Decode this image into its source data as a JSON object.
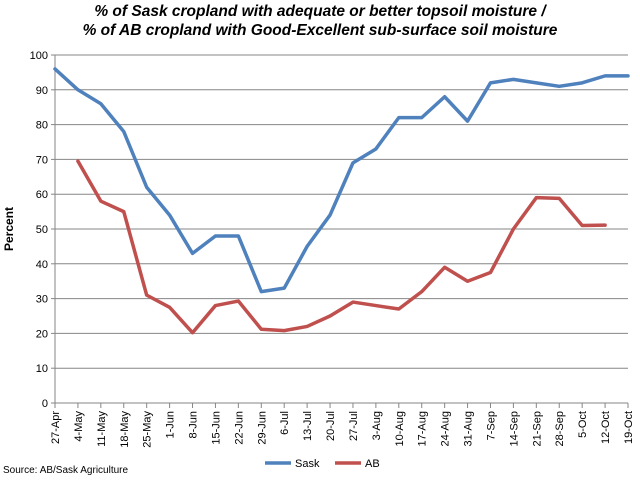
{
  "title": {
    "line1": "% of Sask cropland with adequate or better topsoil moisture /",
    "line2": "% of AB cropland with Good-Excellent sub-surface soil moisture"
  },
  "source": "Source: AB/Sask Agriculture",
  "chart_data": {
    "type": "line",
    "title": "% of Sask cropland with adequate or better topsoil moisture / % of AB cropland with Good-Excellent sub-surface soil moisture",
    "xlabel": "",
    "ylabel": "Percent",
    "ylim": [
      0,
      100
    ],
    "yticks": [
      0,
      10,
      20,
      30,
      40,
      50,
      60,
      70,
      80,
      90,
      100
    ],
    "grid": true,
    "legend": "bottom",
    "categories": [
      "27-Apr",
      "4-May",
      "11-May",
      "18-May",
      "25-May",
      "1-Jun",
      "8-Jun",
      "15-Jun",
      "22-Jun",
      "29-Jun",
      "6-Jul",
      "13-Jul",
      "20-Jul",
      "27-Jul",
      "3-Aug",
      "10-Aug",
      "17-Aug",
      "24-Aug",
      "31-Aug",
      "7-Sep",
      "14-Sep",
      "21-Sep",
      "28-Sep",
      "5-Oct",
      "12-Oct",
      "19-Oct"
    ],
    "series": [
      {
        "name": "Sask",
        "color": "#4f81bd",
        "values": [
          96,
          90,
          86,
          78,
          62,
          54,
          43,
          48,
          48,
          32,
          33,
          45,
          54,
          69,
          73,
          82,
          82,
          88,
          81,
          92,
          93,
          92,
          91,
          92,
          94,
          94
        ]
      },
      {
        "name": "AB",
        "color": "#c0504d",
        "values": [
          null,
          69.5,
          58,
          55,
          31,
          27.5,
          20.2,
          28,
          29.3,
          21.2,
          20.8,
          22,
          25,
          29,
          28,
          27,
          32,
          39,
          35,
          37.5,
          50,
          59,
          58.8,
          51,
          51.1,
          null
        ]
      }
    ]
  }
}
